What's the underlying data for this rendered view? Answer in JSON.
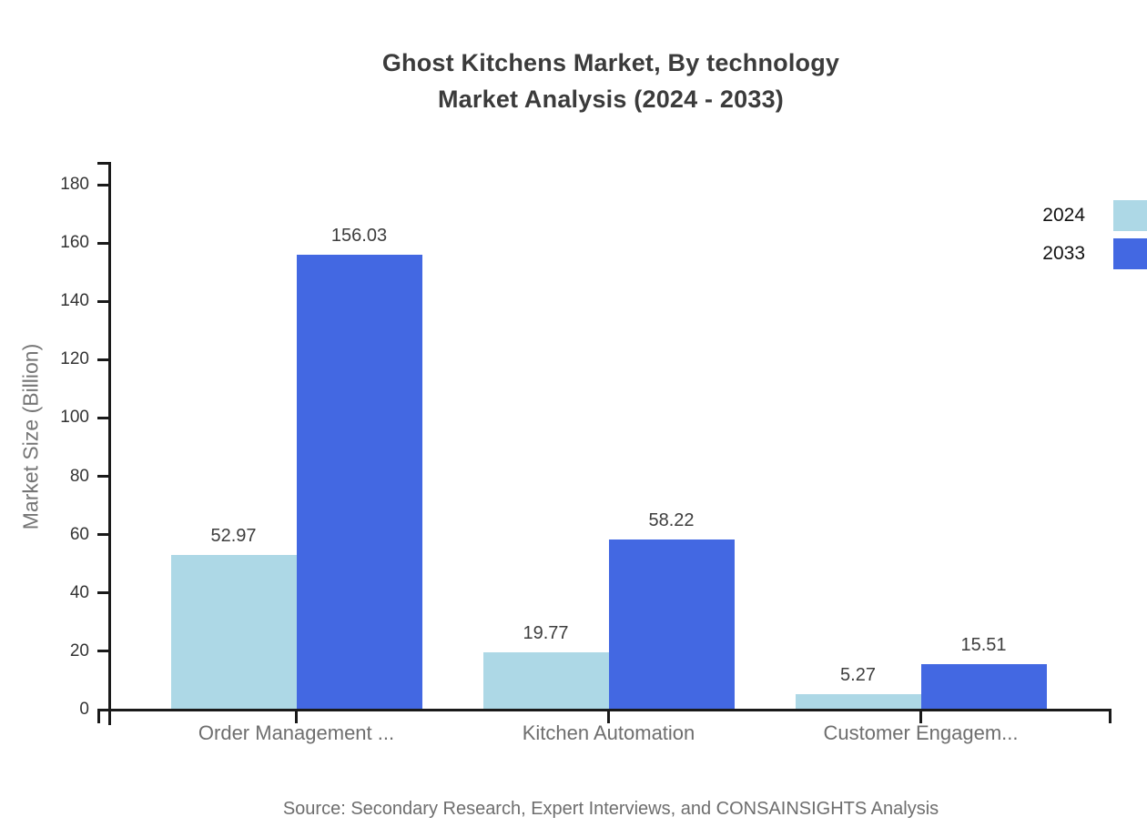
{
  "header": {
    "title_line1": "Ghost Kitchens Market, By technology",
    "title_line2": "Market Analysis (2024 - 2033)"
  },
  "footer": {
    "source": "Source: Secondary Research, Expert Interviews, and CONSAINSIGHTS Analysis"
  },
  "chart_data": {
    "type": "bar",
    "title": "Ghost Kitchens Market, By technology Market Analysis (2024 - 2033)",
    "categories": [
      "Order Management ...",
      "Kitchen Automation",
      "Customer Engagem..."
    ],
    "series": [
      {
        "name": "2024",
        "color": "#ADD8E6",
        "values": [
          52.97,
          19.77,
          5.27
        ]
      },
      {
        "name": "2033",
        "color": "#4368E2",
        "values": [
          156.03,
          58.22,
          15.51
        ]
      }
    ],
    "xlabel": "",
    "ylabel": "Market Size (Billion)",
    "ylim": [
      0,
      180
    ],
    "yticks": [
      0,
      20,
      40,
      60,
      80,
      100,
      120,
      140,
      160,
      180
    ],
    "grid": false,
    "legend": [
      "2024",
      "2033"
    ],
    "legend_position": "top-right",
    "value_labels_shown": true
  },
  "colors": {
    "series_2024": "#ADD8E6",
    "series_2033": "#4368E2",
    "axis": "#1a1a1a",
    "title_text": "#3b3b3b",
    "muted_text": "#6e6e6e",
    "tick_text": "#333333",
    "background": "#ffffff"
  }
}
